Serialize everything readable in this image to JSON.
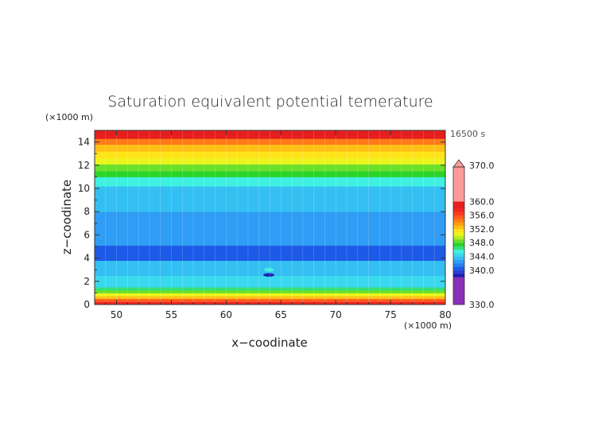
{
  "chart_data": {
    "type": "heatmap",
    "title": "Saturation equivalent potential temerature",
    "xlabel": "x−coodinate",
    "ylabel": "z−coodinate",
    "x_unit": "(×1000 m)",
    "y_unit": "(×1000 m)",
    "time_label": "16500 s",
    "xlim": [
      48,
      80
    ],
    "ylim": [
      0,
      15
    ],
    "x_ticks": [
      "50",
      "55",
      "60",
      "65",
      "70",
      "75",
      "80"
    ],
    "y_ticks": [
      "0",
      "2",
      "4",
      "6",
      "8",
      "10",
      "12",
      "14"
    ],
    "grid": true,
    "colorbar": {
      "range": [
        330,
        370
      ],
      "labels": [
        "370.0",
        "360.0",
        "356.0",
        "352.0",
        "348.0",
        "344.0",
        "340.0",
        "330.0"
      ],
      "levels": [
        {
          "min": 330,
          "max": 338,
          "color": "#8b2fb8"
        },
        {
          "min": 338,
          "max": 339,
          "color": "#1f1fb0"
        },
        {
          "min": 339,
          "max": 340,
          "color": "#2c3fd6"
        },
        {
          "min": 340,
          "max": 341,
          "color": "#1e5ae8"
        },
        {
          "min": 341,
          "max": 342,
          "color": "#2a7ef0"
        },
        {
          "min": 342,
          "max": 343,
          "color": "#2f9cf5"
        },
        {
          "min": 343,
          "max": 344,
          "color": "#34bff2"
        },
        {
          "min": 344,
          "max": 345,
          "color": "#3ad8ee"
        },
        {
          "min": 345,
          "max": 346,
          "color": "#40f0e0"
        },
        {
          "min": 346,
          "max": 347,
          "color": "#33e07a"
        },
        {
          "min": 347,
          "max": 348,
          "color": "#2bd42b"
        },
        {
          "min": 348,
          "max": 349,
          "color": "#6ae02a"
        },
        {
          "min": 349,
          "max": 350,
          "color": "#b4ee22"
        },
        {
          "min": 350,
          "max": 351,
          "color": "#eaf51e"
        },
        {
          "min": 351,
          "max": 352,
          "color": "#ffe41a"
        },
        {
          "min": 352,
          "max": 353,
          "color": "#ffc015"
        },
        {
          "min": 353,
          "max": 354,
          "color": "#ff9c15"
        },
        {
          "min": 354,
          "max": 355,
          "color": "#ff7b18"
        },
        {
          "min": 355,
          "max": 356,
          "color": "#ff5a1c"
        },
        {
          "min": 356,
          "max": 357,
          "color": "#ff3a22"
        },
        {
          "min": 357,
          "max": 358,
          "color": "#f22626"
        },
        {
          "min": 358,
          "max": 360,
          "color": "#e61e1e"
        },
        {
          "min": 360,
          "max": 370,
          "color": "#ff9a9a"
        }
      ]
    },
    "bands": [
      {
        "z": [
          0.0,
          0.25
        ],
        "value": 358,
        "color": "#f22626"
      },
      {
        "z": [
          0.25,
          0.5
        ],
        "value": 356,
        "color": "#ff5a1c"
      },
      {
        "z": [
          0.5,
          0.75
        ],
        "value": 353,
        "color": "#ffc015"
      },
      {
        "z": [
          0.75,
          1.0
        ],
        "value": 351,
        "color": "#eaf51e"
      },
      {
        "z": [
          1.0,
          1.25
        ],
        "value": 349,
        "color": "#6ae02a"
      },
      {
        "z": [
          1.25,
          1.5
        ],
        "value": 347,
        "color": "#33e07a"
      },
      {
        "z": [
          1.5,
          2.5
        ],
        "value": 345,
        "color": "#3ad8ee"
      },
      {
        "z": [
          2.5,
          3.8
        ],
        "value": 343,
        "color": "#34bff2"
      },
      {
        "z": [
          3.8,
          5.1
        ],
        "value": 341,
        "color": "#1e5ae8"
      },
      {
        "z": [
          5.1,
          8.0
        ],
        "value": 342,
        "color": "#2f9cf5"
      },
      {
        "z": [
          8.0,
          10.2
        ],
        "value": 343,
        "color": "#34bff2"
      },
      {
        "z": [
          10.2,
          11.0
        ],
        "value": 345,
        "color": "#40f0e0"
      },
      {
        "z": [
          11.0,
          11.5
        ],
        "value": 348,
        "color": "#2bd42b"
      },
      {
        "z": [
          11.5,
          12.1
        ],
        "value": 349,
        "color": "#6ae02a"
      },
      {
        "z": [
          12.1,
          12.6
        ],
        "value": 350,
        "color": "#eaf51e"
      },
      {
        "z": [
          12.6,
          13.2
        ],
        "value": 352,
        "color": "#ffe41a"
      },
      {
        "z": [
          13.2,
          13.8
        ],
        "value": 353,
        "color": "#ffc015"
      },
      {
        "z": [
          13.8,
          14.3
        ],
        "value": 355,
        "color": "#ff7b18"
      },
      {
        "z": [
          14.3,
          15.0
        ],
        "value": 358,
        "color": "#e61e1e"
      }
    ]
  }
}
